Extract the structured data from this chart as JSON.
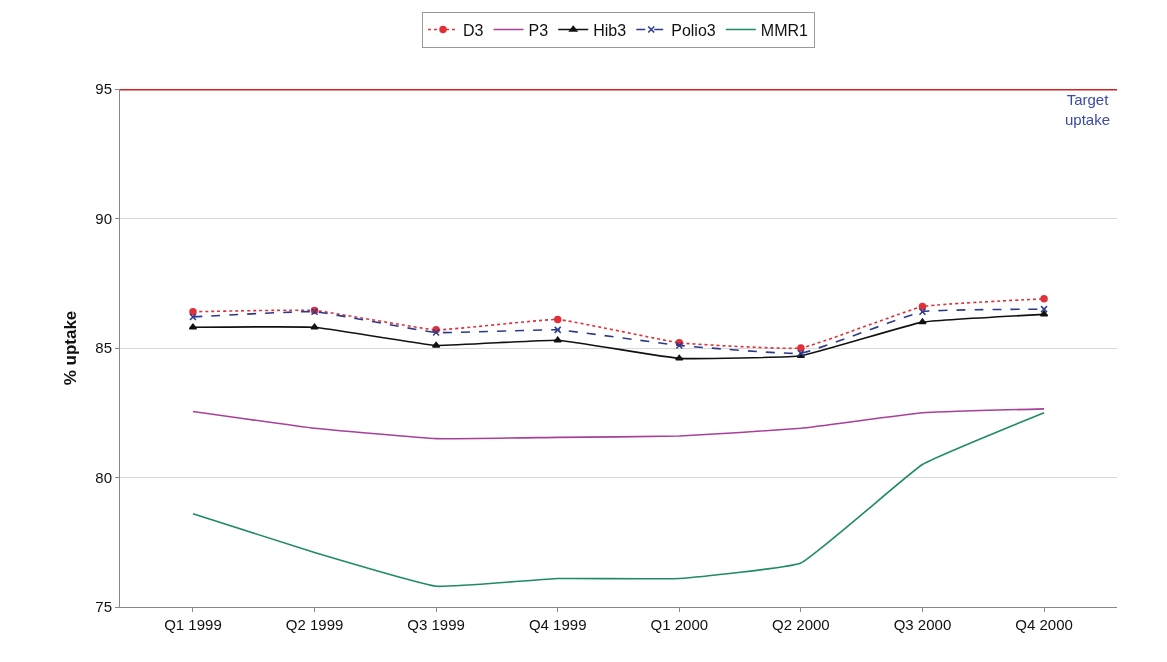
{
  "chart_data": {
    "type": "line",
    "ylabel": "% uptake",
    "categories": [
      "Q1 1999",
      "Q2 1999",
      "Q3 1999",
      "Q4 1999",
      "Q1 2000",
      "Q2 2000",
      "Q3 2000",
      "Q4 2000"
    ],
    "series": [
      {
        "name": "D3",
        "color": "#e0303a",
        "marker": "circle",
        "line_style": "dotted",
        "values": [
          86.4,
          86.45,
          85.7,
          86.1,
          85.2,
          85.0,
          86.6,
          86.9
        ]
      },
      {
        "name": "P3",
        "color": "#a8409a",
        "marker": "none",
        "line_style": "solid",
        "values": [
          82.55,
          81.9,
          81.5,
          81.55,
          81.6,
          81.9,
          82.5,
          82.65
        ]
      },
      {
        "name": "Hib3",
        "color": "#111111",
        "marker": "triangle",
        "line_style": "solid",
        "values": [
          85.8,
          85.8,
          85.1,
          85.3,
          84.6,
          84.7,
          86.0,
          86.3
        ]
      },
      {
        "name": "Polio3",
        "color": "#2b3a8c",
        "marker": "cross",
        "line_style": "dashed",
        "values": [
          86.2,
          86.4,
          85.6,
          85.7,
          85.1,
          84.8,
          86.4,
          86.5
        ]
      },
      {
        "name": "MMR1",
        "color": "#1f8a68",
        "marker": "none",
        "line_style": "solid",
        "values": [
          78.6,
          77.1,
          75.8,
          76.1,
          76.1,
          76.7,
          80.5,
          82.5
        ]
      }
    ],
    "ylim": [
      75,
      95
    ],
    "yticks": [
      75,
      80,
      85,
      90,
      95
    ],
    "grid": "y",
    "legend": "top",
    "ref_lines": [
      {
        "axis": "y",
        "value": 95,
        "label": "Target uptake",
        "color": "#d42020",
        "line_style": "solid"
      }
    ]
  }
}
